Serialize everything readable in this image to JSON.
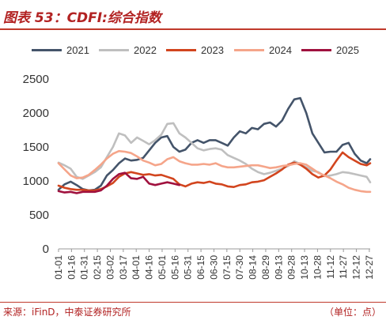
{
  "title": "图表 53：CDFI:综合指数",
  "source": "来源：iFinD，中泰证券研究所",
  "unit": "（单位：点）",
  "colors": {
    "s2021": "#44546a",
    "s2022": "#bfbfbf",
    "s2023": "#d2451e",
    "s2024": "#f5a58a",
    "s2025": "#a0113e",
    "title": "#b22222"
  },
  "chart_data": {
    "type": "line",
    "ylim": [
      0,
      2500
    ],
    "yticks": [
      0,
      500,
      1000,
      1500,
      2000,
      2500
    ],
    "xlim": [
      1,
      362
    ],
    "xtick_labels": [
      "01-01",
      "01-16",
      "01-31",
      "02-15",
      "03-02",
      "03-17",
      "04-01",
      "04-16",
      "05-01",
      "05-16",
      "05-31",
      "06-15",
      "06-30",
      "07-15",
      "07-30",
      "08-14",
      "08-29",
      "09-13",
      "09-28",
      "10-13",
      "10-28",
      "11-12",
      "11-27",
      "12-12",
      "12-27"
    ],
    "xtick_days": [
      1,
      16,
      31,
      46,
      61,
      76,
      91,
      106,
      121,
      136,
      151,
      166,
      181,
      196,
      211,
      226,
      241,
      256,
      271,
      286,
      301,
      316,
      331,
      346,
      361
    ],
    "legend_position": "top",
    "grid": false,
    "series": [
      {
        "name": "2021",
        "color": "#44546a",
        "points": [
          [
            1,
            870
          ],
          [
            8,
            950
          ],
          [
            15,
            990
          ],
          [
            22,
            940
          ],
          [
            29,
            880
          ],
          [
            36,
            860
          ],
          [
            43,
            870
          ],
          [
            50,
            930
          ],
          [
            57,
            1080
          ],
          [
            64,
            1160
          ],
          [
            71,
            1260
          ],
          [
            78,
            1330
          ],
          [
            85,
            1300
          ],
          [
            92,
            1310
          ],
          [
            99,
            1340
          ],
          [
            106,
            1450
          ],
          [
            113,
            1560
          ],
          [
            120,
            1640
          ],
          [
            127,
            1660
          ],
          [
            134,
            1500
          ],
          [
            141,
            1430
          ],
          [
            148,
            1460
          ],
          [
            155,
            1560
          ],
          [
            162,
            1600
          ],
          [
            169,
            1560
          ],
          [
            176,
            1600
          ],
          [
            183,
            1600
          ],
          [
            190,
            1560
          ],
          [
            197,
            1520
          ],
          [
            204,
            1640
          ],
          [
            211,
            1730
          ],
          [
            218,
            1700
          ],
          [
            225,
            1780
          ],
          [
            232,
            1760
          ],
          [
            239,
            1840
          ],
          [
            246,
            1860
          ],
          [
            253,
            1800
          ],
          [
            260,
            1890
          ],
          [
            267,
            2060
          ],
          [
            274,
            2200
          ],
          [
            281,
            2220
          ],
          [
            288,
            2000
          ],
          [
            295,
            1700
          ],
          [
            302,
            1560
          ],
          [
            309,
            1420
          ],
          [
            316,
            1430
          ],
          [
            323,
            1430
          ],
          [
            330,
            1530
          ],
          [
            337,
            1560
          ],
          [
            344,
            1400
          ],
          [
            351,
            1300
          ],
          [
            358,
            1260
          ],
          [
            362,
            1320
          ]
        ]
      },
      {
        "name": "2022",
        "color": "#bfbfbf",
        "points": [
          [
            1,
            1270
          ],
          [
            8,
            1230
          ],
          [
            15,
            1180
          ],
          [
            22,
            1060
          ],
          [
            29,
            1030
          ],
          [
            36,
            1080
          ],
          [
            43,
            1130
          ],
          [
            50,
            1200
          ],
          [
            57,
            1350
          ],
          [
            64,
            1500
          ],
          [
            71,
            1700
          ],
          [
            78,
            1670
          ],
          [
            85,
            1560
          ],
          [
            92,
            1640
          ],
          [
            99,
            1590
          ],
          [
            106,
            1540
          ],
          [
            113,
            1600
          ],
          [
            120,
            1680
          ],
          [
            127,
            1840
          ],
          [
            134,
            1850
          ],
          [
            141,
            1700
          ],
          [
            148,
            1640
          ],
          [
            155,
            1560
          ],
          [
            162,
            1480
          ],
          [
            169,
            1450
          ],
          [
            176,
            1470
          ],
          [
            183,
            1480
          ],
          [
            190,
            1460
          ],
          [
            197,
            1380
          ],
          [
            204,
            1340
          ],
          [
            211,
            1300
          ],
          [
            218,
            1250
          ],
          [
            225,
            1180
          ],
          [
            232,
            1130
          ],
          [
            239,
            1100
          ],
          [
            246,
            1120
          ],
          [
            253,
            1150
          ],
          [
            260,
            1180
          ],
          [
            267,
            1220
          ],
          [
            274,
            1290
          ],
          [
            281,
            1250
          ],
          [
            288,
            1200
          ],
          [
            295,
            1150
          ],
          [
            302,
            1130
          ],
          [
            309,
            1070
          ],
          [
            316,
            1080
          ],
          [
            323,
            1100
          ],
          [
            330,
            1130
          ],
          [
            337,
            1120
          ],
          [
            344,
            1100
          ],
          [
            351,
            1080
          ],
          [
            358,
            1060
          ],
          [
            362,
            980
          ]
        ]
      },
      {
        "name": "2023",
        "color": "#d2451e",
        "points": [
          [
            1,
            930
          ],
          [
            8,
            900
          ],
          [
            15,
            880
          ],
          [
            22,
            870
          ],
          [
            29,
            870
          ],
          [
            36,
            860
          ],
          [
            43,
            860
          ],
          [
            50,
            880
          ],
          [
            57,
            920
          ],
          [
            64,
            970
          ],
          [
            71,
            1060
          ],
          [
            78,
            1110
          ],
          [
            85,
            1130
          ],
          [
            92,
            1110
          ],
          [
            99,
            1090
          ],
          [
            106,
            1100
          ],
          [
            113,
            1080
          ],
          [
            120,
            1090
          ],
          [
            127,
            1060
          ],
          [
            134,
            1030
          ],
          [
            141,
            950
          ],
          [
            148,
            920
          ],
          [
            155,
            960
          ],
          [
            162,
            980
          ],
          [
            169,
            970
          ],
          [
            176,
            990
          ],
          [
            183,
            960
          ],
          [
            190,
            950
          ],
          [
            197,
            920
          ],
          [
            204,
            910
          ],
          [
            211,
            940
          ],
          [
            218,
            950
          ],
          [
            225,
            980
          ],
          [
            232,
            990
          ],
          [
            239,
            1010
          ],
          [
            246,
            1060
          ],
          [
            253,
            1110
          ],
          [
            260,
            1170
          ],
          [
            267,
            1240
          ],
          [
            274,
            1270
          ],
          [
            281,
            1240
          ],
          [
            288,
            1180
          ],
          [
            295,
            1100
          ],
          [
            302,
            1050
          ],
          [
            309,
            1080
          ],
          [
            316,
            1170
          ],
          [
            323,
            1300
          ],
          [
            330,
            1420
          ],
          [
            337,
            1350
          ],
          [
            344,
            1300
          ],
          [
            351,
            1250
          ],
          [
            358,
            1230
          ],
          [
            362,
            1260
          ]
        ]
      },
      {
        "name": "2024",
        "color": "#f5a58a",
        "points": [
          [
            1,
            1260
          ],
          [
            8,
            1170
          ],
          [
            15,
            1080
          ],
          [
            22,
            1040
          ],
          [
            29,
            1050
          ],
          [
            36,
            1090
          ],
          [
            43,
            1160
          ],
          [
            50,
            1240
          ],
          [
            57,
            1330
          ],
          [
            64,
            1400
          ],
          [
            71,
            1440
          ],
          [
            78,
            1430
          ],
          [
            85,
            1410
          ],
          [
            92,
            1360
          ],
          [
            99,
            1300
          ],
          [
            106,
            1270
          ],
          [
            113,
            1230
          ],
          [
            120,
            1250
          ],
          [
            127,
            1320
          ],
          [
            134,
            1350
          ],
          [
            141,
            1290
          ],
          [
            148,
            1260
          ],
          [
            155,
            1240
          ],
          [
            162,
            1240
          ],
          [
            169,
            1250
          ],
          [
            176,
            1240
          ],
          [
            183,
            1260
          ],
          [
            190,
            1220
          ],
          [
            197,
            1200
          ],
          [
            204,
            1200
          ],
          [
            211,
            1210
          ],
          [
            218,
            1220
          ],
          [
            225,
            1230
          ],
          [
            232,
            1230
          ],
          [
            239,
            1210
          ],
          [
            246,
            1190
          ],
          [
            253,
            1200
          ],
          [
            260,
            1220
          ],
          [
            267,
            1230
          ],
          [
            274,
            1250
          ],
          [
            281,
            1260
          ],
          [
            288,
            1240
          ],
          [
            295,
            1180
          ],
          [
            302,
            1120
          ],
          [
            309,
            1080
          ],
          [
            316,
            1040
          ],
          [
            323,
            990
          ],
          [
            330,
            950
          ],
          [
            337,
            900
          ],
          [
            344,
            870
          ],
          [
            351,
            850
          ],
          [
            358,
            840
          ],
          [
            362,
            840
          ]
        ]
      },
      {
        "name": "2025",
        "color": "#a0113e",
        "points": [
          [
            1,
            850
          ],
          [
            8,
            830
          ],
          [
            15,
            840
          ],
          [
            22,
            820
          ],
          [
            29,
            840
          ],
          [
            36,
            840
          ],
          [
            43,
            840
          ],
          [
            50,
            860
          ],
          [
            57,
            930
          ],
          [
            64,
            1030
          ],
          [
            71,
            1100
          ],
          [
            78,
            1120
          ],
          [
            85,
            1040
          ],
          [
            92,
            1030
          ],
          [
            99,
            1060
          ],
          [
            106,
            960
          ],
          [
            113,
            940
          ],
          [
            120,
            960
          ],
          [
            127,
            980
          ],
          [
            134,
            960
          ],
          [
            141,
            940
          ]
        ]
      }
    ]
  }
}
